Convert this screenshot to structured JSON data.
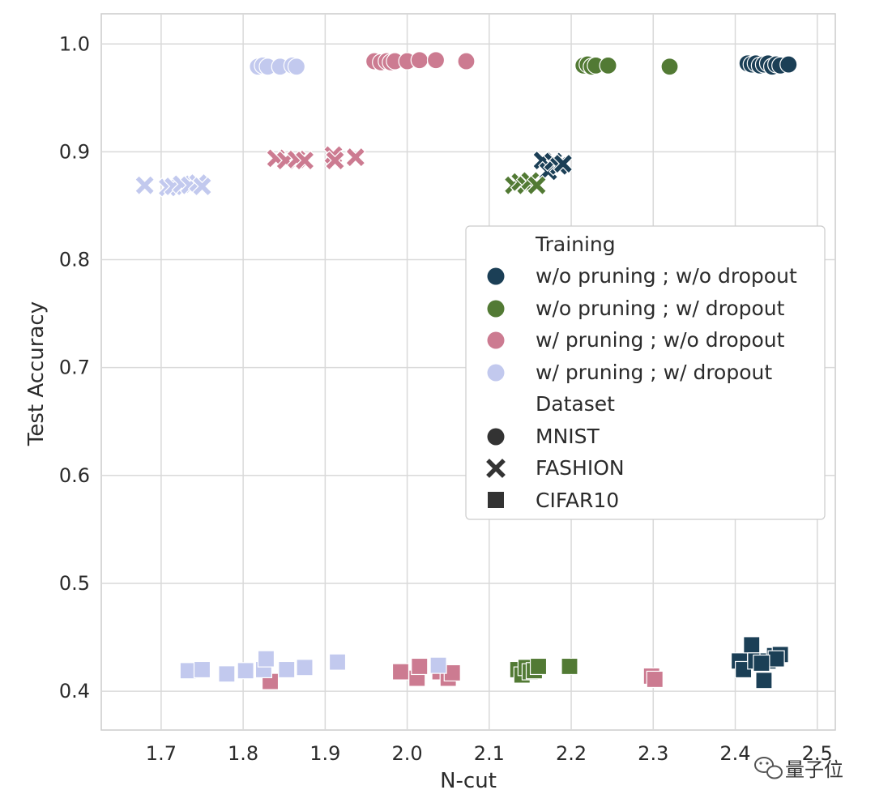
{
  "chart_data": {
    "type": "scatter",
    "xlabel": "N-cut",
    "ylabel": "Test Accuracy",
    "xlim": [
      1.627,
      2.522
    ],
    "ylim": [
      0.364,
      1.028
    ],
    "xticks": [
      "1.7",
      "1.8",
      "1.9",
      "2.0",
      "2.1",
      "2.2",
      "2.3",
      "2.4",
      "2.5"
    ],
    "yticks": [
      "0.4",
      "0.5",
      "0.6",
      "0.7",
      "0.8",
      "0.9",
      "1.0"
    ],
    "grid": true,
    "legend_position": "center-right",
    "legend": {
      "hue_title": "Training",
      "hue": [
        {
          "label": "w/o pruning ; w/o dropout",
          "color": "#1b3f56"
        },
        {
          "label": "w/o pruning ; w/ dropout",
          "color": "#527a34"
        },
        {
          "label": "w/ pruning ; w/o dropout",
          "color": "#cc7b91"
        },
        {
          "label": "w/ pruning ; w/ dropout",
          "color": "#c2c9ee"
        }
      ],
      "style_title": "Dataset",
      "style": [
        {
          "label": "MNIST",
          "marker": "circle"
        },
        {
          "label": "FASHION",
          "marker": "x"
        },
        {
          "label": "CIFAR10",
          "marker": "square"
        }
      ]
    },
    "series": [
      {
        "training": "w/o pruning ; w/o dropout",
        "dataset": "MNIST",
        "x": [
          2.415,
          2.42,
          2.425,
          2.43,
          2.435,
          2.44,
          2.445,
          2.45,
          2.455,
          2.465
        ],
        "y": [
          0.982,
          0.981,
          0.982,
          0.98,
          0.981,
          0.982,
          0.979,
          0.981,
          0.98,
          0.981
        ]
      },
      {
        "training": "w/o pruning ; w/ dropout",
        "dataset": "MNIST",
        "x": [
          2.215,
          2.22,
          2.225,
          2.23,
          2.245,
          2.32
        ],
        "y": [
          0.98,
          0.981,
          0.979,
          0.98,
          0.98,
          0.979
        ]
      },
      {
        "training": "w/ pruning ; w/o dropout",
        "dataset": "MNIST",
        "x": [
          1.96,
          1.968,
          1.975,
          1.98,
          1.985,
          2.0,
          2.015,
          2.035,
          2.072
        ],
        "y": [
          0.984,
          0.983,
          0.984,
          0.983,
          0.984,
          0.984,
          0.985,
          0.985,
          0.984
        ]
      },
      {
        "training": "w/ pruning ; w/ dropout",
        "dataset": "MNIST",
        "x": [
          1.818,
          1.824,
          1.83,
          1.845,
          1.86,
          1.865
        ],
        "y": [
          0.979,
          0.98,
          0.979,
          0.979,
          0.98,
          0.979
        ]
      },
      {
        "training": "w/o pruning ; w/o dropout",
        "dataset": "FASHION",
        "x": [
          2.165,
          2.172,
          2.178,
          2.185,
          2.19
        ],
        "y": [
          0.892,
          0.882,
          0.891,
          0.887,
          0.889
        ]
      },
      {
        "training": "w/o pruning ; w/ dropout",
        "dataset": "FASHION",
        "x": [
          2.13,
          2.138,
          2.145,
          2.15,
          2.158
        ],
        "y": [
          0.869,
          0.872,
          0.869,
          0.873,
          0.869
        ]
      },
      {
        "training": "w/ pruning ; w/o dropout",
        "dataset": "FASHION",
        "x": [
          1.84,
          1.852,
          1.865,
          1.875,
          1.91,
          1.912,
          1.937
        ],
        "y": [
          0.894,
          0.892,
          0.893,
          0.892,
          0.897,
          0.892,
          0.895
        ]
      },
      {
        "training": "w/ pruning ; w/ dropout",
        "dataset": "FASHION",
        "x": [
          1.68,
          1.708,
          1.715,
          1.725,
          1.735,
          1.745,
          1.75
        ],
        "y": [
          0.869,
          0.867,
          0.868,
          0.87,
          0.869,
          0.871,
          0.868
        ]
      },
      {
        "training": "w/o pruning ; w/o dropout",
        "dataset": "CIFAR10",
        "x": [
          2.405,
          2.41,
          2.42,
          2.425,
          2.435,
          2.44,
          2.448,
          2.455,
          2.45,
          2.432
        ],
        "y": [
          0.428,
          0.42,
          0.443,
          0.428,
          0.41,
          0.428,
          0.433,
          0.434,
          0.43,
          0.426
        ]
      },
      {
        "training": "w/o pruning ; w/ dropout",
        "dataset": "CIFAR10",
        "x": [
          2.135,
          2.14,
          2.145,
          2.15,
          2.155,
          2.16,
          2.198
        ],
        "y": [
          0.42,
          0.415,
          0.422,
          0.418,
          0.419,
          0.423,
          0.423
        ]
      },
      {
        "training": "w/ pruning ; w/o dropout",
        "dataset": "CIFAR10",
        "x": [
          1.833,
          1.992,
          2.012,
          2.015,
          2.04,
          2.05,
          2.055,
          2.298,
          2.302
        ],
        "y": [
          0.409,
          0.418,
          0.412,
          0.423,
          0.418,
          0.412,
          0.417,
          0.414,
          0.411
        ]
      },
      {
        "training": "w/ pruning ; w/ dropout",
        "dataset": "CIFAR10",
        "x": [
          1.733,
          1.75,
          1.78,
          1.803,
          1.825,
          1.828,
          1.853,
          1.875,
          1.915,
          2.038
        ],
        "y": [
          0.419,
          0.42,
          0.416,
          0.419,
          0.42,
          0.43,
          0.42,
          0.422,
          0.427,
          0.424
        ]
      }
    ]
  },
  "watermark": {
    "text": "量子位",
    "icon": "wechat-icon"
  }
}
